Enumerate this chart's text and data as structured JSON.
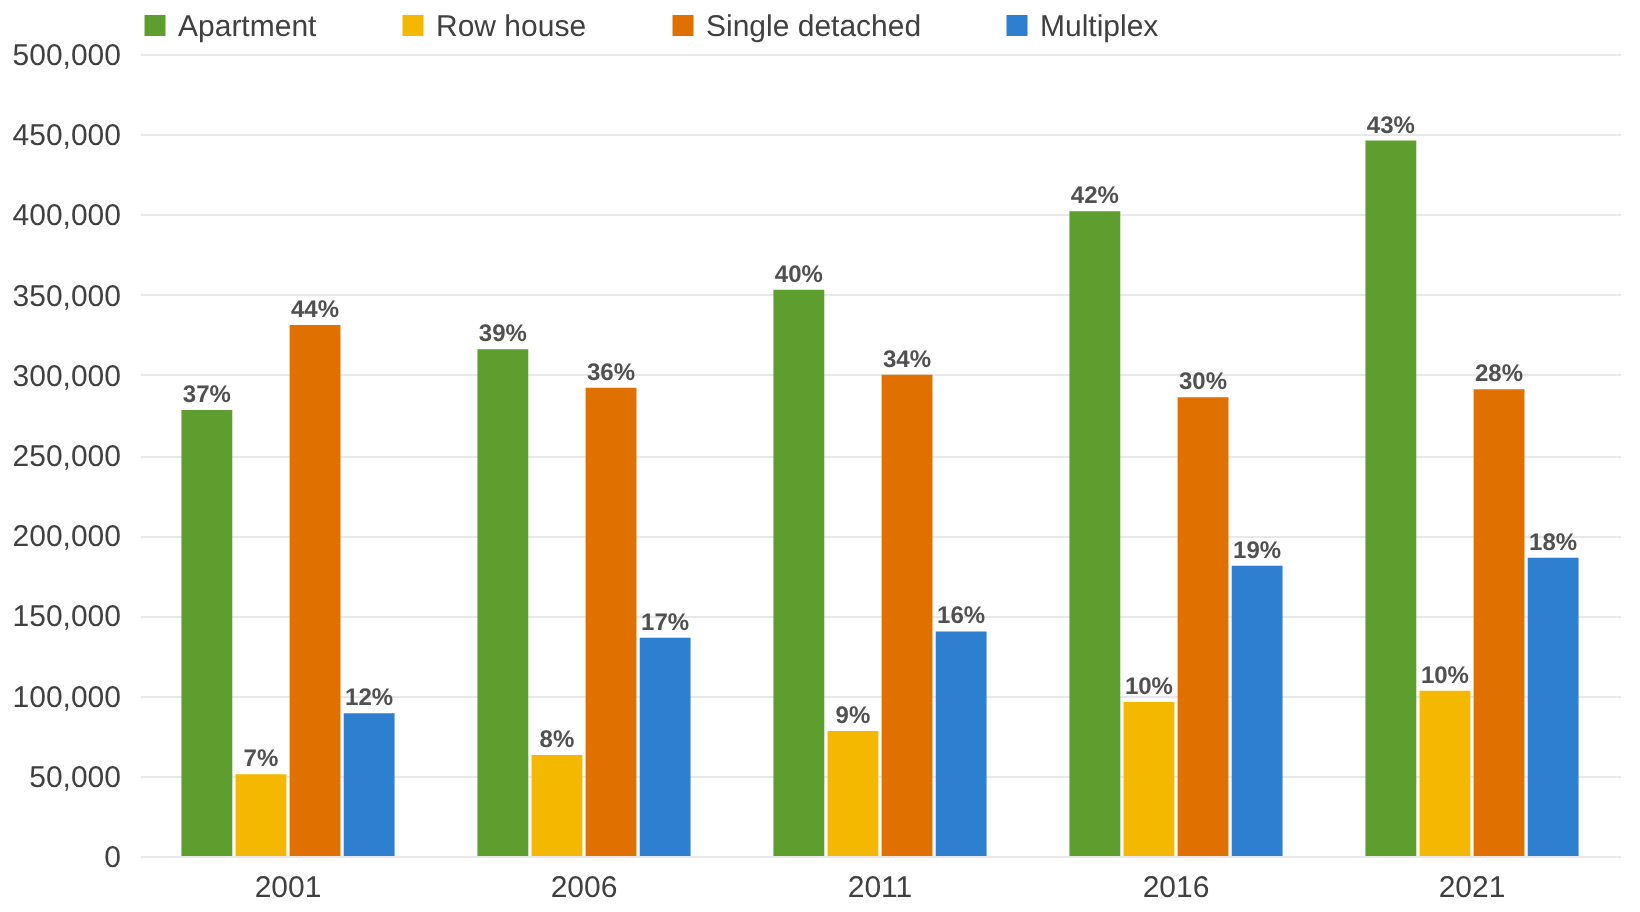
{
  "chart_data": {
    "type": "bar",
    "categories": [
      "2001",
      "2006",
      "2011",
      "2016",
      "2021"
    ],
    "series": [
      {
        "name": "Apartment",
        "color": "#5e9e2e",
        "values": [
          278000,
          316000,
          353000,
          402000,
          446000
        ]
      },
      {
        "name": "Row house",
        "color": "#f5b800",
        "values": [
          51000,
          63000,
          78000,
          96000,
          103000
        ]
      },
      {
        "name": "Single detached",
        "color": "#e07000",
        "values": [
          331000,
          292000,
          300000,
          286000,
          291000
        ]
      },
      {
        "name": "Multiplex",
        "color": "#2e7fd0",
        "values": [
          89000,
          136000,
          140000,
          181000,
          186000
        ]
      }
    ],
    "annotations": [
      "37%",
      "39%",
      "40%",
      "42%",
      "43%",
      "7%",
      "8%",
      "9%",
      "10%",
      "10%",
      "44%",
      "36%",
      "34%",
      "30%",
      "28%",
      "12%",
      "17%",
      "16%",
      "19%",
      "18%"
    ],
    "ylim": [
      0,
      500000
    ],
    "yticks": [
      0,
      {
        "value": 50000,
        "label": "50,000"
      },
      {
        "value": 100000,
        "label": "100,000"
      },
      {
        "value": 150000,
        "label": "150,000"
      },
      {
        "value": 200000,
        "label": "200,000"
      },
      {
        "value": 250000,
        "label": "250,000"
      },
      {
        "value": 300000,
        "label": "300,000"
      },
      {
        "value": 350000,
        "label": "350,000"
      },
      {
        "value": 400000,
        "label": "400,000"
      },
      {
        "value": 450000,
        "label": "450,000"
      },
      {
        "value": 500000,
        "label": "500,000"
      }
    ],
    "grid": "y",
    "legend": "top"
  }
}
